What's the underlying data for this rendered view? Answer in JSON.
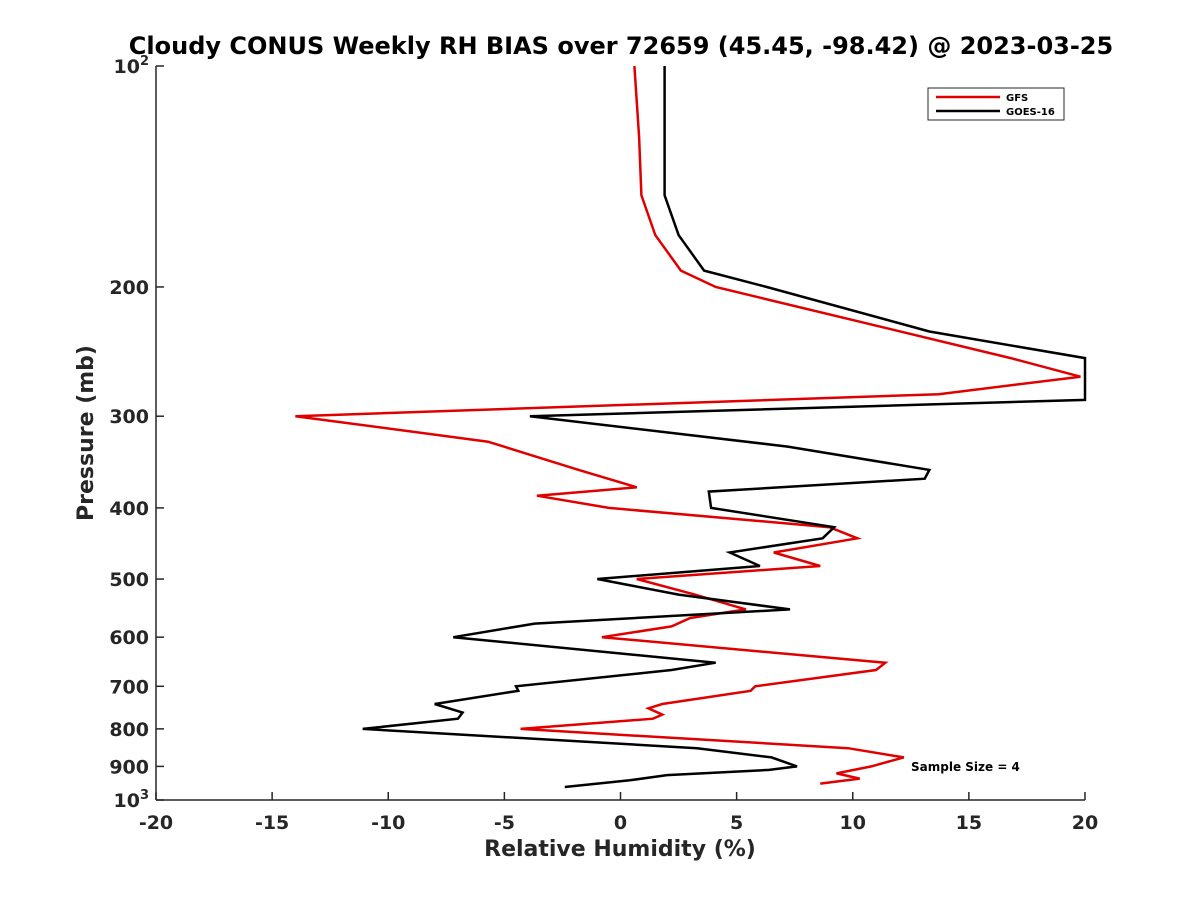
{
  "chart_data": {
    "type": "line",
    "title": "Cloudy CONUS Weekly RH BIAS over 72659 (45.45, -98.42) @ 2023-03-25",
    "xlabel": "Relative Humidity (%)",
    "ylabel": "Pressure (mb)",
    "xlim": [
      -20,
      20
    ],
    "ylim": [
      100,
      1000
    ],
    "yscale": "log",
    "yreversed": true,
    "xticks": [
      -20,
      -15,
      -10,
      -5,
      0,
      5,
      10,
      15,
      20
    ],
    "xtick_labels": [
      "-20",
      "-15",
      "-10",
      "-5",
      "0",
      "5",
      "10",
      "15",
      "20"
    ],
    "yticks": [
      {
        "value": 100,
        "base": "10",
        "exp": "2"
      },
      {
        "value": 200,
        "label": "200"
      },
      {
        "value": 300,
        "label": "300"
      },
      {
        "value": 400,
        "label": "400"
      },
      {
        "value": 500,
        "label": "500"
      },
      {
        "value": 600,
        "label": "600"
      },
      {
        "value": 700,
        "label": "700"
      },
      {
        "value": 800,
        "label": "800"
      },
      {
        "value": 900,
        "label": "900"
      },
      {
        "value": 1000,
        "base": "10",
        "exp": "3"
      }
    ],
    "grid": false,
    "legend_position": "top-right",
    "annotation": "Sample Size = 4",
    "series": [
      {
        "name": "GFS",
        "color": "#e00000",
        "points": [
          [
            0.6,
            100
          ],
          [
            0.8,
            125
          ],
          [
            0.9,
            150
          ],
          [
            1.5,
            170
          ],
          [
            2.6,
            190
          ],
          [
            4.1,
            200
          ],
          [
            16.8,
            250
          ],
          [
            19.8,
            265
          ],
          [
            13.7,
            280
          ],
          [
            -14.0,
            300
          ],
          [
            -5.7,
            325
          ],
          [
            -1.8,
            355
          ],
          [
            0.7,
            375
          ],
          [
            -3.6,
            385
          ],
          [
            -0.5,
            400
          ],
          [
            9.0,
            425
          ],
          [
            10.2,
            440
          ],
          [
            6.6,
            460
          ],
          [
            8.6,
            480
          ],
          [
            0.7,
            500
          ],
          [
            3.2,
            525
          ],
          [
            5.4,
            550
          ],
          [
            3.0,
            565
          ],
          [
            2.2,
            580
          ],
          [
            -0.8,
            600
          ],
          [
            11.4,
            650
          ],
          [
            11.0,
            665
          ],
          [
            5.8,
            700
          ],
          [
            5.6,
            710
          ],
          [
            1.8,
            740
          ],
          [
            1.2,
            750
          ],
          [
            1.8,
            765
          ],
          [
            1.4,
            775
          ],
          [
            -4.3,
            800
          ],
          [
            9.8,
            850
          ],
          [
            12.2,
            875
          ],
          [
            10.8,
            900
          ],
          [
            9.3,
            920
          ],
          [
            10.3,
            935
          ],
          [
            8.6,
            950
          ]
        ]
      },
      {
        "name": "GOES-16",
        "color": "#000000",
        "points": [
          [
            1.9,
            100
          ],
          [
            1.9,
            125
          ],
          [
            1.9,
            150
          ],
          [
            2.5,
            170
          ],
          [
            3.6,
            190
          ],
          [
            6.3,
            200
          ],
          [
            13.3,
            230
          ],
          [
            20.0,
            250
          ],
          [
            20.0,
            285
          ],
          [
            -3.9,
            300
          ],
          [
            7.2,
            330
          ],
          [
            13.3,
            355
          ],
          [
            13.1,
            365
          ],
          [
            3.8,
            380
          ],
          [
            3.9,
            400
          ],
          [
            9.2,
            425
          ],
          [
            8.7,
            440
          ],
          [
            4.7,
            460
          ],
          [
            6.0,
            480
          ],
          [
            -1.0,
            500
          ],
          [
            2.5,
            525
          ],
          [
            7.3,
            550
          ],
          [
            -3.7,
            575
          ],
          [
            -7.2,
            600
          ],
          [
            4.1,
            650
          ],
          [
            2.2,
            665
          ],
          [
            -4.5,
            700
          ],
          [
            -4.4,
            710
          ],
          [
            -8.0,
            740
          ],
          [
            -6.8,
            760
          ],
          [
            -7.0,
            775
          ],
          [
            -11.1,
            800
          ],
          [
            3.3,
            850
          ],
          [
            6.5,
            875
          ],
          [
            7.6,
            900
          ],
          [
            6.4,
            910
          ],
          [
            2.0,
            925
          ],
          [
            0.4,
            940
          ],
          [
            -2.4,
            960
          ]
        ]
      }
    ]
  }
}
